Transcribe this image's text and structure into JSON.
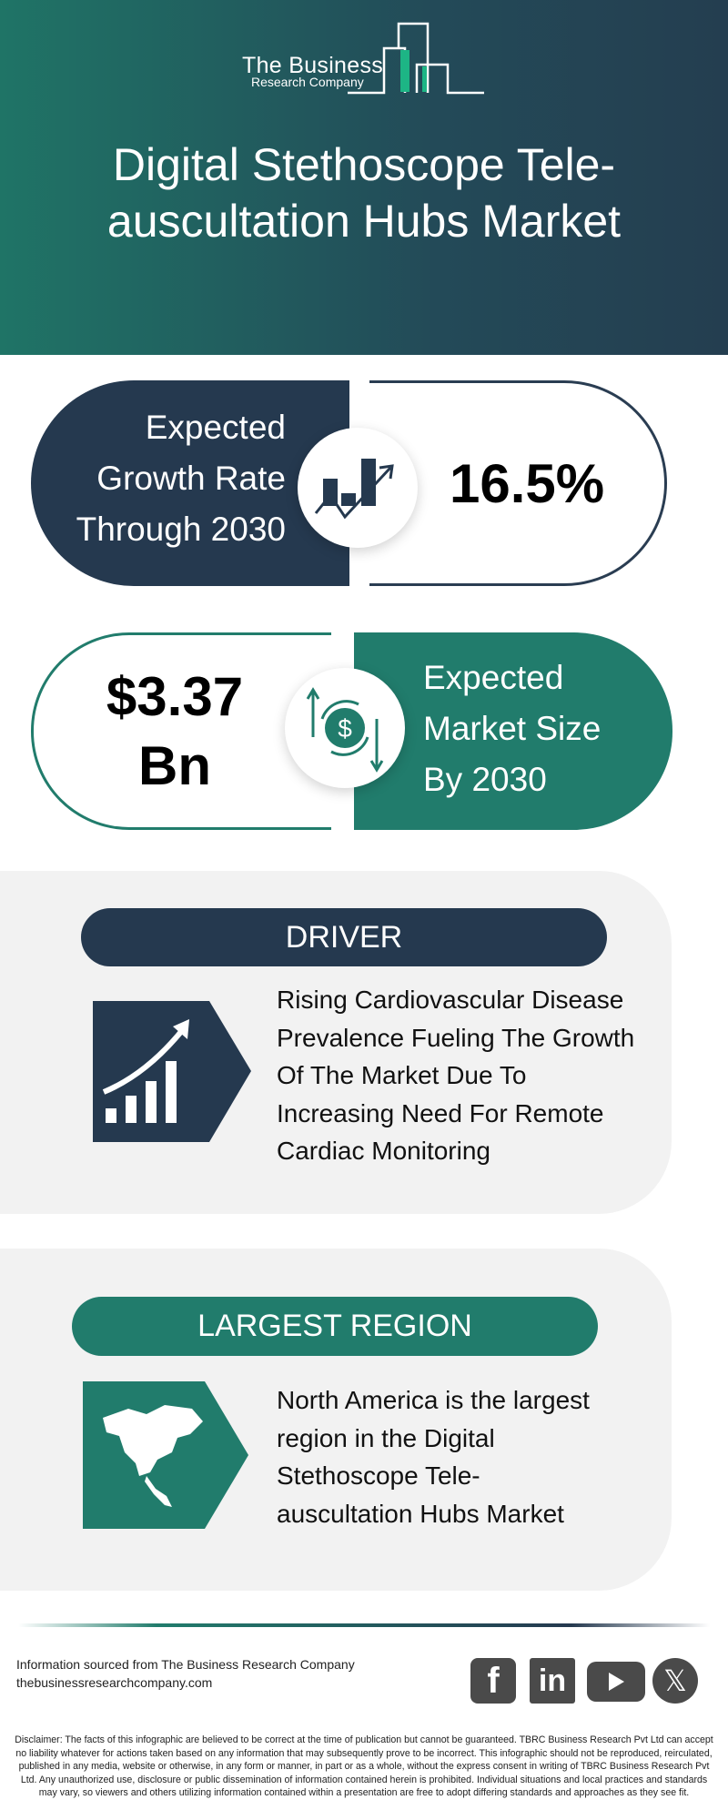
{
  "logo": {
    "line1": "The Business",
    "line2": "Research Company"
  },
  "title": "Digital Stethoscope Tele-auscultation Hubs Market",
  "growth": {
    "label_lines": [
      "Expected",
      "Growth Rate",
      "Through 2030"
    ],
    "value": "16.5%",
    "icon": "growth-chart-icon"
  },
  "market_size": {
    "value_lines": [
      "$3.37",
      "Bn"
    ],
    "label_lines": [
      "Expected",
      "Market Size",
      "By 2030"
    ],
    "icon": "dollar-cycle-icon"
  },
  "driver": {
    "heading": "DRIVER",
    "text_lines": [
      "Rising Cardiovascular Disease",
      "Prevalence Fueling The Growth",
      "Of The Market Due To",
      "Increasing Need For Remote",
      "Cardiac Monitoring"
    ]
  },
  "region": {
    "heading": "LARGEST REGION",
    "text_lines": [
      "North America is the largest",
      "region in the Digital",
      "Stethoscope Tele-",
      "auscultation Hubs Market"
    ]
  },
  "footer": {
    "source": "Information sourced from The Business Research Company",
    "website": "thebusinessresearchcompany.com",
    "social": [
      "facebook",
      "linkedin",
      "youtube",
      "x"
    ],
    "disclaimer": "Disclaimer: The facts of this infographic are believed to be correct at the time of publication but cannot be guaranteed. TBRC Business Research Pvt Ltd can accept no liability whatever for actions taken based on any information that may subsequently prove to be incorrect. This infographic should not be reproduced, reirculated, published in any media, website or otherwise, in any form or manner, in part or as a whole, without the express consent in writing of TBRC Business Research Pvt Ltd. Any unauthorized use, disclosure or public dissemination of information contained herein is prohibited. Individual situations and local practices and standards may vary, so viewers and others utilizing information contained within a presentation are free to adopt differing standards and approaches as they see fit."
  },
  "colors": {
    "navy": "#25394f",
    "teal": "#217c6c",
    "panel": "#f2f2f2"
  }
}
